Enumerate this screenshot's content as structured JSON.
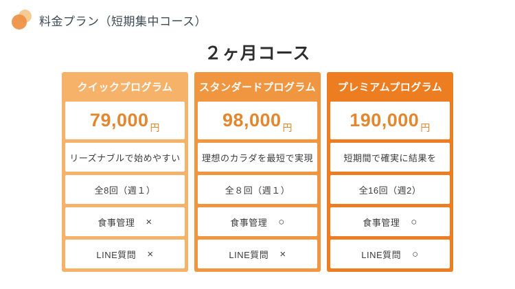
{
  "slide": {
    "header": {
      "title": "料金プラン（短期集中コース）"
    },
    "main_title": "２ヶ月コース"
  },
  "colors": {
    "header_text": "#3d4a55",
    "title_text": "#2e2e2e",
    "cell_text": "#3c3c3c",
    "price_text": "#e2872f",
    "logo_back": "#f6ca93",
    "logo_front": "#ee8f43"
  },
  "plans": [
    {
      "name": "クイックプログラム",
      "accent": "#f7b269",
      "price": "79,000",
      "currency": "円",
      "description": "リーズナブルで始めやすい",
      "sessions": "全8回（週１）",
      "features": [
        {
          "label": "食事管理",
          "value": "×"
        },
        {
          "label": "LINE質問",
          "value": "×"
        }
      ]
    },
    {
      "name": "スタンダードプログラム",
      "accent": "#f09540",
      "price": "98,000",
      "currency": "円",
      "description": "理想のカラダを最短で実現",
      "sessions": "全８回（週１）",
      "features": [
        {
          "label": "食事管理",
          "value": "○"
        },
        {
          "label": "LINE質問",
          "value": "×"
        }
      ]
    },
    {
      "name": "プレミアムプログラム",
      "accent": "#ed7d21",
      "price": "190,000",
      "currency": "円",
      "description": "短期間で確実に結果を",
      "sessions": "全16回（週2）",
      "features": [
        {
          "label": "食事管理",
          "value": "○"
        },
        {
          "label": "LINE質問",
          "value": "○"
        }
      ]
    }
  ]
}
